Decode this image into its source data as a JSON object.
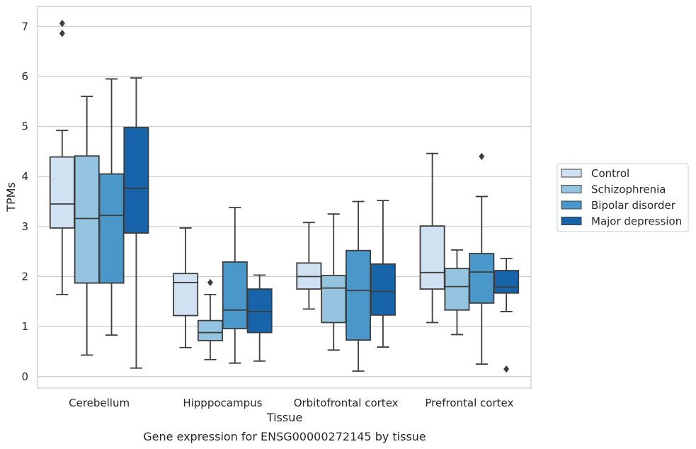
{
  "chart_data": {
    "type": "box",
    "caption": "Gene expression for ENSG00000272145 by tissue",
    "xlabel": "Tissue",
    "ylabel": "TPMs",
    "ylim": [
      -0.23,
      7.4
    ],
    "yticks": [
      "0",
      "1",
      "2",
      "3",
      "4",
      "5",
      "6",
      "7"
    ],
    "categories": [
      "Cerebellum",
      "Hipppocampus",
      "Orbitofrontal cortex",
      "Prefrontal cortex"
    ],
    "grid": "horizontal",
    "legend_position": "right",
    "series": [
      {
        "name": "Control",
        "color": "#d0e1f2",
        "boxes": [
          {
            "whisker_low": 1.64,
            "q1": 2.97,
            "median": 3.45,
            "q3": 4.39,
            "whisker_high": 4.92,
            "outliers": [
              7.06,
              6.86
            ]
          },
          {
            "whisker_low": 0.58,
            "q1": 1.22,
            "median": 1.88,
            "q3": 2.06,
            "whisker_high": 2.97,
            "outliers": []
          },
          {
            "whisker_low": 1.35,
            "q1": 1.75,
            "median": 2.0,
            "q3": 2.27,
            "whisker_high": 3.08,
            "outliers": []
          },
          {
            "whisker_low": 1.08,
            "q1": 1.75,
            "median": 2.08,
            "q3": 3.01,
            "whisker_high": 4.46,
            "outliers": []
          }
        ]
      },
      {
        "name": "Schizophrenia",
        "color": "#94c4df",
        "boxes": [
          {
            "whisker_low": 0.43,
            "q1": 1.87,
            "median": 3.16,
            "q3": 4.41,
            "whisker_high": 5.6,
            "outliers": []
          },
          {
            "whisker_low": 0.34,
            "q1": 0.72,
            "median": 0.88,
            "q3": 1.12,
            "whisker_high": 1.64,
            "outliers": [
              1.88
            ]
          },
          {
            "whisker_low": 0.53,
            "q1": 1.08,
            "median": 1.77,
            "q3": 2.02,
            "whisker_high": 3.25,
            "outliers": []
          },
          {
            "whisker_low": 0.84,
            "q1": 1.33,
            "median": 1.8,
            "q3": 2.16,
            "whisker_high": 2.53,
            "outliers": []
          }
        ]
      },
      {
        "name": "Bipolar disorder",
        "color": "#4a98c9",
        "boxes": [
          {
            "whisker_low": 0.83,
            "q1": 1.87,
            "median": 3.22,
            "q3": 4.05,
            "whisker_high": 5.95,
            "outliers": []
          },
          {
            "whisker_low": 0.27,
            "q1": 0.96,
            "median": 1.33,
            "q3": 2.29,
            "whisker_high": 3.38,
            "outliers": []
          },
          {
            "whisker_low": 0.11,
            "q1": 0.73,
            "median": 1.72,
            "q3": 2.52,
            "whisker_high": 3.5,
            "outliers": []
          },
          {
            "whisker_low": 0.25,
            "q1": 1.47,
            "median": 2.09,
            "q3": 2.46,
            "whisker_high": 3.6,
            "outliers": [
              4.4
            ]
          }
        ]
      },
      {
        "name": "Major depression",
        "color": "#1764ab",
        "boxes": [
          {
            "whisker_low": 0.17,
            "q1": 2.87,
            "median": 3.76,
            "q3": 4.98,
            "whisker_high": 5.97,
            "outliers": []
          },
          {
            "whisker_low": 0.31,
            "q1": 0.88,
            "median": 1.3,
            "q3": 1.75,
            "whisker_high": 2.03,
            "outliers": []
          },
          {
            "whisker_low": 0.59,
            "q1": 1.23,
            "median": 1.7,
            "q3": 2.25,
            "whisker_high": 3.52,
            "outliers": []
          },
          {
            "whisker_low": 1.3,
            "q1": 1.67,
            "median": 1.79,
            "q3": 2.12,
            "whisker_high": 2.36,
            "outliers": [
              0.15
            ]
          }
        ]
      }
    ]
  }
}
